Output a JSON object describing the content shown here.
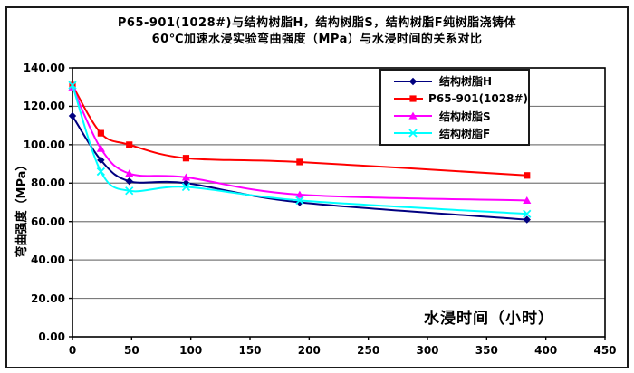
{
  "chart_data": {
    "type": "line",
    "title_line1": "P65-901(1028#)与结构树脂H，结构树脂S，结构树脂F纯树脂浇铸体",
    "title_line2": "60℃加速水浸实验弯曲强度（MPa）与水浸时间的关系对比",
    "xlabel": "水浸时间（小时）",
    "ylabel": "弯曲强度（MPa）",
    "x": [
      0,
      24,
      48,
      96,
      192,
      384
    ],
    "series": [
      {
        "name": "结构树脂H",
        "color": "#000080",
        "marker": "diamond",
        "values": [
          115,
          92,
          81,
          80,
          70,
          61
        ]
      },
      {
        "name": "P65-901(1028#)",
        "color": "#FF0000",
        "marker": "square",
        "values": [
          131,
          106,
          100,
          93,
          91,
          84
        ]
      },
      {
        "name": "结构树脂S",
        "color": "#FF00FF",
        "marker": "triangle",
        "values": [
          130,
          98,
          85,
          83,
          74,
          71
        ]
      },
      {
        "name": "结构树脂F",
        "color": "#00FFFF",
        "marker": "x",
        "values": [
          131,
          86,
          76,
          78,
          71,
          64
        ]
      }
    ],
    "xlim": [
      0,
      450
    ],
    "ylim": [
      0,
      140
    ],
    "x_ticks": [
      0,
      50,
      100,
      150,
      200,
      250,
      300,
      350,
      400,
      450
    ],
    "y_ticks": [
      0,
      20,
      40,
      60,
      80,
      100,
      120,
      140
    ],
    "y_tick_decimals": 2,
    "grid": "horizontal",
    "gridline_color": "#7b7b7b",
    "axis_color": "#000000",
    "legend_position": "inside-top-right",
    "plot_background": "#ffffff"
  }
}
